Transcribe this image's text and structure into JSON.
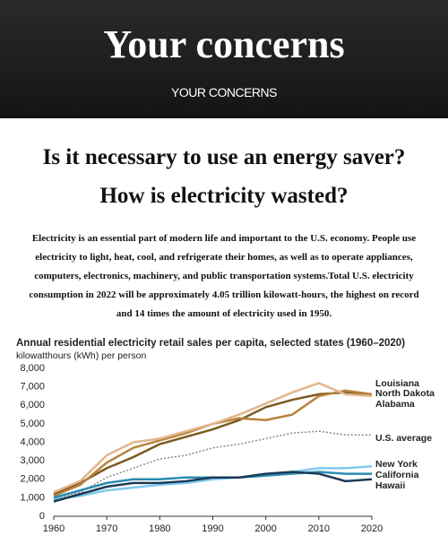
{
  "header": {
    "title": "Your concerns",
    "subtitle": "YOUR CONCERNS"
  },
  "headings": [
    "Is it necessary to use an energy saver?",
    "How is electricity wasted?"
  ],
  "paragraph": "Electricity is an essential part of modern life and important to the U.S. economy. People use electricity to light, heat, cool, and refrigerate their homes, as well as to operate appliances, computers, electronics, machinery, and public transportation systems.Total U.S. electricity consumption in 2022 will be approximately 4.05 trillion kilowatt-hours, the highest on record and 14 times the amount of electricity used in 1950.",
  "chart_data": {
    "type": "line",
    "title": "Annual residential electricity retail sales per capita, selected states (1960–2020)",
    "subtitle": "kilowatthours (kWh) per person",
    "x": [
      1960,
      1965,
      1970,
      1975,
      1980,
      1985,
      1990,
      1995,
      2000,
      2005,
      2010,
      2015,
      2020
    ],
    "xlim": [
      1960,
      2020
    ],
    "xticks": [
      1960,
      1970,
      1980,
      1990,
      2000,
      2010,
      2020
    ],
    "ylim": [
      0,
      8000
    ],
    "yticks": [
      0,
      {
        "value": 1000,
        "label": "1,000"
      },
      {
        "value": 2000,
        "label": "2,000"
      },
      {
        "value": 3000,
        "label": "3,000"
      },
      {
        "value": 4000,
        "label": "4,000"
      },
      {
        "value": 5000,
        "label": "5,000"
      },
      {
        "value": 6000,
        "label": "6,000"
      },
      {
        "value": 7000,
        "label": "7,000"
      },
      {
        "value": 8000,
        "label": "8,000"
      }
    ],
    "series": [
      {
        "name": "Louisiana",
        "color": "#7a5a1e",
        "values": [
          1200,
          1800,
          2600,
          3200,
          3900,
          4300,
          4700,
          5200,
          5900,
          6300,
          6600,
          6700,
          6600
        ]
      },
      {
        "name": "North Dakota",
        "color": "#b9823f",
        "values": [
          1100,
          1700,
          2900,
          3700,
          4100,
          4500,
          5000,
          5300,
          5200,
          5500,
          6500,
          6800,
          6600
        ]
      },
      {
        "name": "Alabama",
        "color": "#e2b68a",
        "values": [
          1300,
          1900,
          3300,
          4000,
          4200,
          4600,
          5000,
          5500,
          6100,
          6700,
          7200,
          6600,
          6500
        ]
      },
      {
        "name": "U.S. average",
        "color": "#8a8a8a",
        "dashed": true,
        "values": [
          900,
          1300,
          2100,
          2600,
          3100,
          3300,
          3700,
          3900,
          4200,
          4500,
          4600,
          4400,
          4400
        ]
      },
      {
        "name": "New York",
        "color": "#7fc8ee",
        "values": [
          900,
          1100,
          1400,
          1550,
          1700,
          1800,
          2000,
          2100,
          2200,
          2400,
          2600,
          2600,
          2700
        ]
      },
      {
        "name": "California",
        "color": "#2a8cb0",
        "values": [
          1000,
          1400,
          1800,
          2000,
          2000,
          2100,
          2100,
          2100,
          2200,
          2300,
          2400,
          2300,
          2300
        ]
      },
      {
        "name": "Hawaii",
        "color": "#1b3a55",
        "values": [
          800,
          1200,
          1600,
          1800,
          1800,
          1900,
          2100,
          2100,
          2300,
          2400,
          2300,
          1900,
          2000
        ]
      }
    ]
  }
}
